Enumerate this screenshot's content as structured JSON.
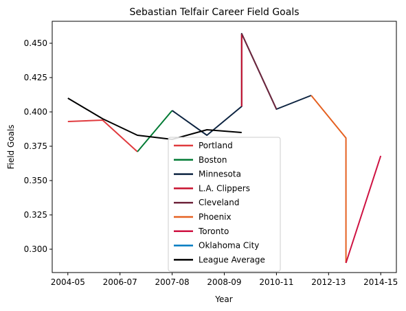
{
  "chart_data": {
    "type": "line",
    "title": "Sebastian Telfair Career Field Goals",
    "xlabel": "Year",
    "ylabel": "Field Goals",
    "x_ticks": [
      "2004-05",
      "2006-07",
      "2007-08",
      "2008-09",
      "2010-11",
      "2012-13",
      "2014-15"
    ],
    "y_ticks": [
      "0.300",
      "0.325",
      "0.350",
      "0.375",
      "0.400",
      "0.425",
      "0.450"
    ],
    "xlim": [
      -0.45,
      9.45
    ],
    "ylim": [
      0.283,
      0.466
    ],
    "legend_position": "lower center",
    "series": [
      {
        "name": "Portland",
        "color": "#e03a3e",
        "points": [
          [
            0,
            0.393
          ],
          [
            1,
            0.394
          ],
          [
            2,
            0.371
          ]
        ]
      },
      {
        "name": "Boston",
        "color": "#007a33",
        "points": [
          [
            2,
            0.371
          ],
          [
            3,
            0.401
          ]
        ]
      },
      {
        "name": "Minnesota",
        "color": "#0c2340",
        "points": [
          [
            3,
            0.401
          ],
          [
            4,
            0.383
          ],
          [
            5,
            0.404
          ],
          [
            5,
            0.457
          ],
          [
            6,
            0.402
          ],
          [
            7,
            0.412
          ]
        ]
      },
      {
        "name": "L.A. Clippers",
        "color": "#c8102e",
        "points": [
          [
            5,
            0.404
          ],
          [
            5,
            0.457
          ]
        ]
      },
      {
        "name": "Cleveland",
        "color": "#6f263d",
        "points": [
          [
            5,
            0.457
          ],
          [
            6,
            0.402
          ]
        ]
      },
      {
        "name": "Phoenix",
        "color": "#e56020",
        "points": [
          [
            7,
            0.412
          ],
          [
            8,
            0.381
          ],
          [
            8,
            0.29
          ]
        ]
      },
      {
        "name": "Toronto",
        "color": "#ce1141",
        "points": [
          [
            8,
            0.29
          ],
          [
            9,
            0.368
          ]
        ]
      },
      {
        "name": "Oklahoma City",
        "color": "#007ac1",
        "points": []
      },
      {
        "name": "League Average",
        "color": "#000000",
        "points": [
          [
            0,
            0.41
          ],
          [
            1,
            0.395
          ],
          [
            2,
            0.383
          ],
          [
            3,
            0.38
          ],
          [
            4,
            0.387
          ],
          [
            5,
            0.385
          ]
        ]
      }
    ]
  }
}
